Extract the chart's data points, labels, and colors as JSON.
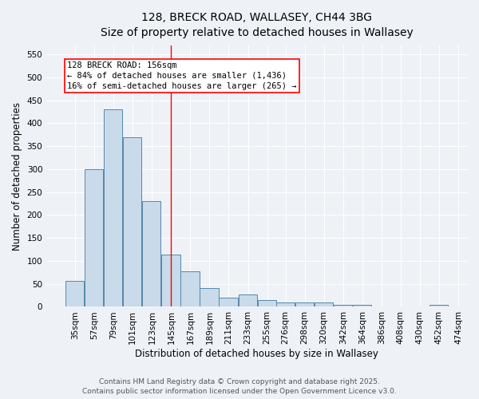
{
  "title_line1": "128, BRECK ROAD, WALLASEY, CH44 3BG",
  "title_line2": "Size of property relative to detached houses in Wallasey",
  "xlabel": "Distribution of detached houses by size in Wallasey",
  "ylabel": "Number of detached properties",
  "bins": [
    35,
    57,
    79,
    101,
    123,
    145,
    167,
    189,
    211,
    233,
    255,
    276,
    298,
    320,
    342,
    364,
    386,
    408,
    430,
    452,
    474
  ],
  "values": [
    57,
    300,
    430,
    370,
    230,
    113,
    78,
    40,
    20,
    27,
    15,
    10,
    9,
    9,
    5,
    4,
    0,
    0,
    0,
    4
  ],
  "bar_color": "#c9daea",
  "bar_edge_color": "#5588aa",
  "red_line_x": 156,
  "annotation_line1": "128 BRECK ROAD: 156sqm",
  "annotation_line2": "← 84% of detached houses are smaller (1,436)",
  "annotation_line3": "16% of semi-detached houses are larger (265) →",
  "annotation_box_color": "white",
  "annotation_box_edge_color": "red",
  "ylim": [
    0,
    570
  ],
  "yticks": [
    0,
    50,
    100,
    150,
    200,
    250,
    300,
    350,
    400,
    450,
    500,
    550
  ],
  "footer_line1": "Contains HM Land Registry data © Crown copyright and database right 2025.",
  "footer_line2": "Contains public sector information licensed under the Open Government Licence v3.0.",
  "background_color": "#eef2f7",
  "title_fontsize": 10,
  "xlabel_fontsize": 8.5,
  "ylabel_fontsize": 8.5,
  "tick_fontsize": 7.5,
  "annotation_fontsize": 7.5,
  "footer_fontsize": 6.5
}
